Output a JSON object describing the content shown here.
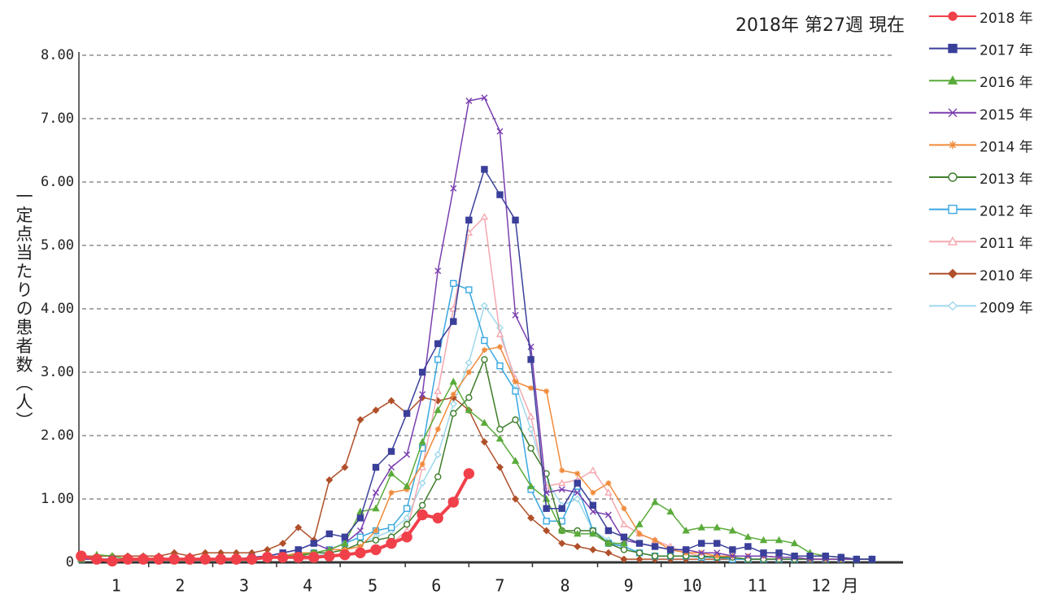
{
  "chart_data": {
    "type": "line",
    "title": "2018年 第27週 現在",
    "y_label": "一定点当たりの患者数（人）",
    "x_unit": "月",
    "x": [
      1,
      2,
      3,
      4,
      5,
      6,
      7,
      8,
      9,
      10,
      11,
      12,
      13,
      14,
      15,
      16,
      17,
      18,
      19,
      20,
      21,
      22,
      23,
      24,
      25,
      26,
      27,
      28,
      29,
      30,
      31,
      32,
      33,
      34,
      35,
      36,
      37,
      38,
      39,
      40,
      41,
      42,
      43,
      44,
      45,
      46,
      47,
      48,
      49,
      50,
      51,
      52
    ],
    "xlim": [
      0.85,
      54
    ],
    "xticks": [
      {
        "value": 3.25,
        "label": "1"
      },
      {
        "value": 7.38,
        "label": "2"
      },
      {
        "value": 11.5,
        "label": "3"
      },
      {
        "value": 15.6,
        "label": "4"
      },
      {
        "value": 19.8,
        "label": "5"
      },
      {
        "value": 23.9,
        "label": "6"
      },
      {
        "value": 28.0,
        "label": "7"
      },
      {
        "value": 32.2,
        "label": "8"
      },
      {
        "value": 36.3,
        "label": "9"
      },
      {
        "value": 40.4,
        "label": "10"
      },
      {
        "value": 44.6,
        "label": "11"
      },
      {
        "value": 48.7,
        "label": "12"
      }
    ],
    "ylim": [
      0,
      8
    ],
    "yticks": [
      0,
      {
        "value": 1,
        "label": "1.00"
      },
      {
        "value": 2,
        "label": "2.00"
      },
      {
        "value": 3,
        "label": "3.00"
      },
      {
        "value": 4,
        "label": "4.00"
      },
      {
        "value": 5,
        "label": "5.00"
      },
      {
        "value": 6,
        "label": "6.00"
      },
      {
        "value": 7,
        "label": "7.00"
      },
      {
        "value": 8,
        "label": "8.00"
      }
    ],
    "grid": true,
    "legend": "right",
    "series": [
      {
        "name": "2018 年",
        "color": "#f0404a",
        "marker": "circle",
        "width": 4,
        "values": [
          0.1,
          0.05,
          0.02,
          0.05,
          0.05,
          0.05,
          0.05,
          0.05,
          0.05,
          0.05,
          0.05,
          0.05,
          0.08,
          0.08,
          0.08,
          0.08,
          0.1,
          0.12,
          0.15,
          0.2,
          0.3,
          0.4,
          0.75,
          0.7,
          0.95,
          1.4,
          null,
          null,
          null,
          null,
          null,
          null,
          null,
          null,
          null,
          null,
          null,
          null,
          null,
          null,
          null,
          null,
          null,
          null,
          null,
          null,
          null,
          null,
          null,
          null,
          null,
          null
        ]
      },
      {
        "name": "2017 年",
        "color": "#3a3f9a",
        "marker": "square",
        "width": 1.5,
        "values": [
          0.08,
          0.05,
          0.05,
          0.05,
          0.05,
          0.05,
          0.05,
          0.05,
          0.05,
          0.05,
          0.05,
          0.08,
          0.1,
          0.15,
          0.2,
          0.3,
          0.45,
          0.4,
          0.7,
          1.5,
          1.75,
          2.35,
          3.0,
          3.45,
          3.8,
          5.4,
          6.2,
          5.8,
          5.4,
          3.2,
          0.85,
          0.85,
          1.25,
          0.9,
          0.5,
          0.4,
          0.3,
          0.25,
          0.2,
          0.2,
          0.3,
          0.3,
          0.2,
          0.25,
          0.15,
          0.15,
          0.1,
          0.1,
          0.1,
          0.08,
          0.05,
          0.05
        ]
      },
      {
        "name": "2016 年",
        "color": "#5aab3a",
        "marker": "triangle",
        "width": 1.5,
        "values": [
          0.05,
          0.12,
          0.1,
          0.05,
          0.05,
          0.05,
          0.05,
          0.05,
          0.05,
          0.05,
          0.05,
          0.05,
          0.08,
          0.1,
          0.12,
          0.15,
          0.2,
          0.3,
          0.8,
          0.85,
          1.4,
          1.2,
          1.9,
          2.4,
          2.85,
          2.4,
          2.2,
          1.95,
          1.6,
          1.2,
          1.0,
          0.5,
          0.45,
          0.45,
          0.3,
          0.3,
          0.6,
          0.95,
          0.8,
          0.5,
          0.55,
          0.55,
          0.5,
          0.4,
          0.35,
          0.35,
          0.3,
          0.15,
          0.1,
          0.08,
          0.05,
          0.05
        ]
      },
      {
        "name": "2015 年",
        "color": "#7a3fb0",
        "marker": "x",
        "width": 1.5,
        "values": [
          0.05,
          0.05,
          0.05,
          0.05,
          0.05,
          0.05,
          0.05,
          0.05,
          0.05,
          0.05,
          0.05,
          0.08,
          0.1,
          0.15,
          0.2,
          0.3,
          0.2,
          0.3,
          0.5,
          1.1,
          1.5,
          1.7,
          2.65,
          4.6,
          5.9,
          7.28,
          7.33,
          6.8,
          3.9,
          3.4,
          1.1,
          1.15,
          1.1,
          0.8,
          0.75,
          0.35,
          0.3,
          0.25,
          0.2,
          0.2,
          0.15,
          0.15,
          0.1,
          0.1,
          0.1,
          0.08,
          0.08,
          0.05,
          0.05,
          0.05,
          0.05,
          0.05
        ]
      },
      {
        "name": "2014 年",
        "color": "#f08a3a",
        "marker": "star",
        "width": 1.5,
        "values": [
          0.05,
          0.05,
          0.05,
          0.05,
          0.05,
          0.05,
          0.05,
          0.05,
          0.05,
          0.05,
          0.05,
          0.05,
          0.08,
          0.1,
          0.15,
          0.15,
          0.2,
          0.2,
          0.25,
          0.5,
          1.1,
          1.15,
          1.55,
          2.1,
          2.65,
          3.0,
          3.35,
          3.4,
          2.85,
          2.75,
          2.7,
          1.45,
          1.4,
          1.1,
          1.25,
          0.85,
          0.45,
          0.35,
          0.2,
          0.15,
          0.15,
          0.1,
          0.1,
          0.1,
          0.1,
          0.08,
          0.08,
          0.05,
          0.05,
          0.05,
          0.05,
          0.05
        ]
      },
      {
        "name": "2013 年",
        "color": "#3e7d2a",
        "marker": "circle-open",
        "width": 1.5,
        "values": [
          0.05,
          0.05,
          0.05,
          0.05,
          0.05,
          0.05,
          0.05,
          0.05,
          0.05,
          0.05,
          0.05,
          0.05,
          0.08,
          0.1,
          0.1,
          0.15,
          0.15,
          0.2,
          0.3,
          0.35,
          0.4,
          0.6,
          0.9,
          1.35,
          2.35,
          2.6,
          3.2,
          2.1,
          2.25,
          1.8,
          1.4,
          0.5,
          0.5,
          0.5,
          0.3,
          0.2,
          0.15,
          0.1,
          0.1,
          0.1,
          0.1,
          0.08,
          0.08,
          0.05,
          0.05,
          0.05,
          0.05,
          0.05,
          0.05,
          0.05,
          0.05,
          0.05
        ]
      },
      {
        "name": "2012 年",
        "color": "#3aa8e0",
        "marker": "square-open",
        "width": 1.5,
        "values": [
          0.05,
          0.05,
          0.05,
          0.05,
          0.05,
          0.05,
          0.05,
          0.05,
          0.05,
          0.05,
          0.05,
          0.05,
          0.08,
          0.1,
          0.1,
          0.15,
          0.2,
          0.3,
          0.4,
          0.5,
          0.55,
          0.85,
          1.8,
          3.2,
          4.4,
          4.3,
          3.5,
          3.1,
          2.7,
          1.15,
          0.65,
          0.65,
          1.2,
          0.5,
          0.3,
          0.25,
          0.15,
          0.1,
          0.1,
          0.1,
          0.08,
          0.08,
          0.05,
          0.05,
          0.05,
          0.05,
          0.05,
          0.05,
          0.05,
          0.05,
          0.05,
          0.05
        ]
      },
      {
        "name": "2011 年",
        "color": "#f5a8b0",
        "marker": "triangle-open",
        "width": 1.5,
        "values": [
          0.05,
          0.05,
          0.05,
          0.05,
          0.05,
          0.05,
          0.05,
          0.05,
          0.05,
          0.05,
          0.05,
          0.05,
          0.08,
          0.1,
          0.05,
          0.05,
          0.1,
          0.1,
          0.15,
          0.2,
          0.3,
          0.5,
          1.5,
          2.7,
          4.0,
          5.2,
          5.45,
          3.6,
          2.9,
          2.3,
          1.2,
          1.25,
          1.3,
          1.45,
          1.1,
          0.6,
          0.45,
          0.35,
          0.25,
          0.15,
          0.1,
          0.1,
          0.08,
          0.05,
          0.05,
          0.05,
          0.05,
          0.05,
          0.05,
          0.05,
          0.05,
          0.05
        ]
      },
      {
        "name": "2010 年",
        "color": "#b0502a",
        "marker": "diamond",
        "width": 1.5,
        "values": [
          0.1,
          0.1,
          0.1,
          0.1,
          0.1,
          0.1,
          0.15,
          0.1,
          0.15,
          0.15,
          0.15,
          0.15,
          0.2,
          0.3,
          0.55,
          0.35,
          1.3,
          1.5,
          2.25,
          2.4,
          2.55,
          2.35,
          2.6,
          2.55,
          2.6,
          2.4,
          1.9,
          1.5,
          1.0,
          0.7,
          0.5,
          0.3,
          0.25,
          0.2,
          0.15,
          0.05,
          0.05,
          0.05,
          0.05,
          0.05,
          0.05,
          0.05,
          0.05,
          0.05,
          0.05,
          0.05,
          0.05,
          0.05,
          0.05,
          0.05,
          0.05,
          0.05
        ]
      },
      {
        "name": "2009 年",
        "color": "#9fd8ec",
        "marker": "diamond-open",
        "width": 1.5,
        "values": [
          0.05,
          0.05,
          0.05,
          0.05,
          0.05,
          0.05,
          0.05,
          0.05,
          0.05,
          0.05,
          0.05,
          0.05,
          0.08,
          0.1,
          0.1,
          0.1,
          0.15,
          0.2,
          0.3,
          0.4,
          0.5,
          0.7,
          1.25,
          1.7,
          2.5,
          3.15,
          4.05,
          3.7,
          2.8,
          2.1,
          1.3,
          0.9,
          1.0,
          0.5,
          0.35,
          0.25,
          0.15,
          0.1,
          0.1,
          0.1,
          0.08,
          0.08,
          0.05,
          0.05,
          0.05,
          0.05,
          0.05,
          0.05,
          0.05,
          0.05,
          0.05,
          0.05
        ]
      }
    ]
  }
}
